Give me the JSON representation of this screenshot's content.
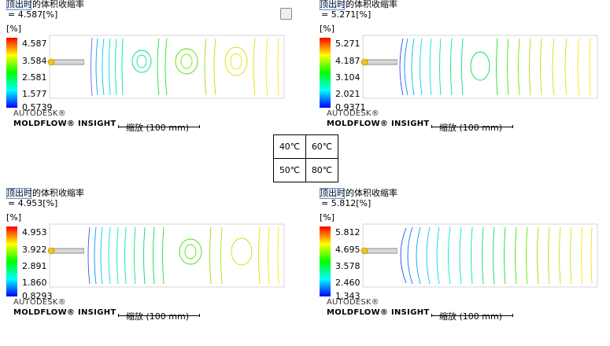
{
  "checkbox_icon": "checkbox-icon",
  "panels": [
    {
      "title": "顶出时的体积收缩率",
      "value": "= 4.587[%]",
      "unit": "[%]",
      "ticks": [
        "4.587",
        "3.584",
        "2.581",
        "1.577",
        "0.5739"
      ],
      "brand_line1": "AUTODESK®",
      "brand_line2": "MOLDFLOW® INSIGHT",
      "scale_label": "缩放 (100 mm)"
    },
    {
      "title": "顶出时的体积收缩率",
      "value": "= 5.271[%]",
      "unit": "[%]",
      "ticks": [
        "5.271",
        "4.187",
        "3.104",
        "2.021",
        "0.9371"
      ],
      "brand_line1": "AUTODESK®",
      "brand_line2": "MOLDFLOW® INSIGHT",
      "scale_label": "缩放 (100 mm)"
    },
    {
      "title": "顶出时的体积收缩率",
      "value": "= 4.953[%]",
      "unit": "[%]",
      "ticks": [
        "4.953",
        "3.922",
        "2.891",
        "1.860",
        "0.8293"
      ],
      "brand_line1": "AUTODESK®",
      "brand_line2": "MOLDFLOW® INSIGHT",
      "scale_label": "缩放 (100 mm)"
    },
    {
      "title": "顶出时的体积收缩率",
      "value": "= 5.812[%]",
      "unit": "[%]",
      "ticks": [
        "5.812",
        "4.695",
        "3.578",
        "2.460",
        "1.343"
      ],
      "brand_line1": "AUTODESK®",
      "brand_line2": "MOLDFLOW® INSIGHT",
      "scale_label": "缩放 (100 mm)"
    }
  ],
  "legend_table": {
    "cells": [
      "40℃",
      "60℃",
      "50℃",
      "80℃"
    ]
  }
}
